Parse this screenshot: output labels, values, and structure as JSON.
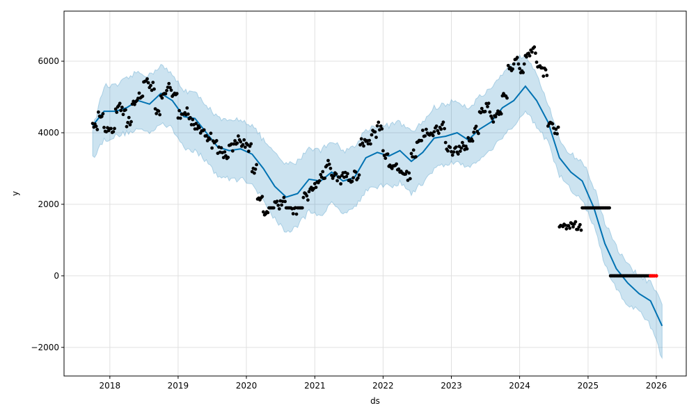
{
  "chart_data": {
    "type": "scatter",
    "title": "",
    "xlabel": "ds",
    "ylabel": "y",
    "xlim": [
      "2017-05-01",
      "2026-06-10"
    ],
    "ylim": [
      -2800,
      7400
    ],
    "x_ticks": [
      "2018",
      "2019",
      "2020",
      "2021",
      "2022",
      "2023",
      "2024",
      "2025",
      "2026"
    ],
    "y_ticks": [
      -2000,
      0,
      2000,
      4000,
      6000
    ],
    "y_tick_labels": [
      "−2000",
      "0",
      "2000",
      "4000",
      "6000"
    ],
    "grid": true,
    "legend": "none",
    "colors": {
      "observed": "#000000",
      "future_points": "#ff0000",
      "forecast_line": "#0072b2",
      "interval_fill": "#0072b2",
      "grid": "#e0e0e0"
    },
    "series": [
      {
        "kind": "forecast",
        "x": [
          "2017-10-01",
          "2017-12-01",
          "2018-02-01",
          "2018-04-01",
          "2018-06-01",
          "2018-08-01",
          "2018-10-01",
          "2018-12-01",
          "2019-02-01",
          "2019-04-01",
          "2019-06-01",
          "2019-08-01",
          "2019-10-01",
          "2019-12-01",
          "2020-02-01",
          "2020-04-01",
          "2020-06-01",
          "2020-08-01",
          "2020-10-01",
          "2020-12-01",
          "2021-02-01",
          "2021-04-01",
          "2021-06-01",
          "2021-08-01",
          "2021-10-01",
          "2021-12-01",
          "2022-02-01",
          "2022-04-01",
          "2022-06-01",
          "2022-08-01",
          "2022-10-01",
          "2022-12-01",
          "2023-02-01",
          "2023-04-01",
          "2023-06-01",
          "2023-08-01",
          "2023-10-01",
          "2023-12-01",
          "2024-02-01",
          "2024-04-01",
          "2024-06-01",
          "2024-08-01",
          "2024-10-01",
          "2024-12-01",
          "2025-02-01",
          "2025-04-01",
          "2025-06-01",
          "2025-08-01",
          "2025-10-01",
          "2025-12-01",
          "2026-02-01"
        ],
        "y": [
          4200,
          4600,
          4600,
          4700,
          4900,
          4800,
          5100,
          4900,
          4450,
          4400,
          4000,
          3600,
          3500,
          3550,
          3400,
          3000,
          2500,
          2200,
          2300,
          2700,
          2650,
          2900,
          2650,
          2750,
          3300,
          3450,
          3350,
          3500,
          3200,
          3450,
          3850,
          3900,
          4000,
          3800,
          4100,
          4300,
          4700,
          4900,
          5300,
          4900,
          4300,
          3300,
          2900,
          2650,
          1900,
          900,
          200,
          -200,
          -500,
          -700,
          -1400
        ],
        "lower": [
          3300,
          3800,
          3900,
          4000,
          4100,
          4000,
          4300,
          4100,
          3600,
          3500,
          3200,
          2800,
          2700,
          2700,
          2600,
          2100,
          1600,
          1200,
          1400,
          1800,
          1700,
          2000,
          1800,
          1900,
          2400,
          2500,
          2500,
          2600,
          2300,
          2600,
          3000,
          3100,
          3200,
          3000,
          3300,
          3500,
          3900,
          4200,
          4600,
          4200,
          3700,
          2800,
          2400,
          2100,
          1400,
          300,
          -400,
          -800,
          -1000,
          -1400,
          -2300
        ],
        "upper": [
          4100,
          5300,
          5300,
          5500,
          5700,
          5600,
          5900,
          5600,
          5200,
          5100,
          4800,
          4400,
          4300,
          4400,
          4200,
          3800,
          3400,
          3100,
          3200,
          3600,
          3500,
          3800,
          3500,
          3600,
          4100,
          4200,
          4200,
          4300,
          4000,
          4300,
          4700,
          4800,
          4900,
          4700,
          5000,
          5200,
          5600,
          6000,
          6200,
          5700,
          4800,
          3800,
          3400,
          3200,
          2500,
          1500,
          800,
          300,
          0,
          -200,
          -800
        ]
      },
      {
        "kind": "observed",
        "x": [
          "2017-10-01",
          "2017-11-01",
          "2017-12-01",
          "2018-01-01",
          "2018-02-01",
          "2018-03-01",
          "2018-04-01",
          "2018-05-01",
          "2018-06-01",
          "2018-07-01",
          "2018-08-01",
          "2018-09-01",
          "2018-10-01",
          "2018-11-01",
          "2018-12-01",
          "2019-01-01",
          "2019-02-01",
          "2019-03-01",
          "2019-04-01",
          "2019-05-01",
          "2019-06-01",
          "2019-07-01",
          "2019-08-01",
          "2019-09-01",
          "2019-10-01",
          "2019-11-01",
          "2019-12-01",
          "2020-01-01",
          "2020-02-01",
          "2020-03-01",
          "2020-04-01",
          "2020-05-01",
          "2020-06-01",
          "2020-07-01",
          "2020-08-01",
          "2020-09-01",
          "2020-10-01",
          "2020-11-01",
          "2020-12-01",
          "2021-01-01",
          "2021-02-01",
          "2021-03-01",
          "2021-04-01",
          "2021-05-01",
          "2021-06-01",
          "2021-07-01",
          "2021-08-01",
          "2021-09-01",
          "2021-10-01",
          "2021-11-01",
          "2021-12-01",
          "2022-01-01",
          "2022-02-01",
          "2022-03-01",
          "2022-04-01",
          "2022-05-01",
          "2022-06-01",
          "2022-07-01",
          "2022-08-01",
          "2022-09-01",
          "2022-10-01",
          "2022-11-01",
          "2022-12-01",
          "2023-01-01",
          "2023-02-01",
          "2023-03-01",
          "2023-04-01",
          "2023-05-01",
          "2023-06-01",
          "2023-07-01",
          "2023-08-01",
          "2023-09-01",
          "2023-10-01",
          "2023-11-01",
          "2023-12-01",
          "2024-01-01",
          "2024-02-01",
          "2024-03-01",
          "2024-04-01",
          "2024-05-01",
          "2024-06-01",
          "2024-07-01",
          "2024-08-01",
          "2024-09-01",
          "2024-10-01",
          "2024-11-01",
          "2024-12-01",
          "2025-01-01",
          "2025-02-01",
          "2025-03-01",
          "2025-04-01",
          "2025-05-01",
          "2025-06-01",
          "2025-07-01",
          "2025-08-01",
          "2025-09-01",
          "2025-10-01",
          "2025-11-01"
        ],
        "y": [
          4200,
          4500,
          4100,
          4000,
          4700,
          4600,
          4300,
          4800,
          5000,
          5500,
          5300,
          4600,
          5100,
          5300,
          5100,
          4500,
          4600,
          4300,
          4200,
          4000,
          3900,
          3700,
          3500,
          3400,
          3600,
          3800,
          3700,
          3600,
          3000,
          2100,
          1800,
          1900,
          2000,
          2100,
          1900,
          1800,
          1900,
          2200,
          2400,
          2600,
          2800,
          3100,
          2800,
          2700,
          2800,
          2700,
          2800,
          3700,
          3800,
          4000,
          4200,
          3400,
          3100,
          3000,
          2900,
          2800,
          3400,
          3800,
          4000,
          3900,
          4100,
          4200,
          3600,
          3500,
          3500,
          3600,
          3800,
          4100,
          4600,
          4700,
          4400,
          4600,
          5000,
          5800,
          6000,
          5800,
          6200,
          6300,
          5900,
          5700,
          4300,
          4100,
          1400,
          1300,
          1400,
          1300,
          1900,
          1900,
          1900,
          1900,
          1900,
          0,
          0,
          0,
          0,
          0,
          0,
          0
        ]
      },
      {
        "kind": "future",
        "x": [
          "2025-12-01",
          "2025-12-10",
          "2025-12-20",
          "2026-01-01"
        ],
        "y": [
          0,
          0,
          0,
          0
        ]
      }
    ]
  }
}
